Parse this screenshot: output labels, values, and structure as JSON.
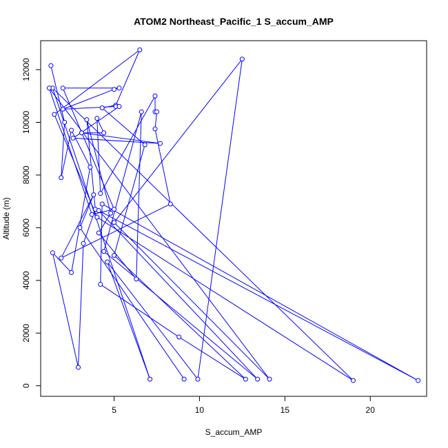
{
  "chart_data": {
    "type": "scatter",
    "title": "ATOM2 Northeast_Pacific_1 S_accum_AMP",
    "xlabel": "S_accum_AMP",
    "ylabel": "Altitude (m)",
    "xlim": [
      0.7,
      23.3
    ],
    "ylim": [
      -400,
      13100
    ],
    "xticks": [
      5,
      10,
      15,
      20
    ],
    "yticks": [
      0,
      2000,
      4000,
      6000,
      8000,
      10000,
      12000
    ],
    "grid": false,
    "series_color": "#0000ff",
    "series": [
      {
        "style": "line+points",
        "points": [
          [
            1.3,
            12150
          ],
          [
            2.1,
            10000
          ],
          [
            1.9,
            7900
          ],
          [
            2.5,
            9700
          ],
          [
            3.6,
            8300
          ],
          [
            2.5,
            4300
          ],
          [
            1.4,
            5050
          ],
          [
            2.9,
            700
          ],
          [
            3.2,
            5400
          ],
          [
            3.9,
            6700
          ],
          [
            3.4,
            10100
          ],
          [
            4.8,
            6550
          ],
          [
            4.1,
            5800
          ],
          [
            6.3,
            4050
          ],
          [
            6.6,
            10400
          ],
          [
            4.4,
            5100
          ],
          [
            13.4,
            250
          ],
          [
            4.1,
            6650
          ],
          [
            22.8,
            200
          ],
          [
            4.3,
            6900
          ],
          [
            4.2,
            3850
          ],
          [
            8.8,
            1850
          ],
          [
            12.7,
            250
          ],
          [
            5.0,
            4950
          ],
          [
            6.8,
            9150
          ],
          [
            4.3,
            10550
          ],
          [
            5.1,
            10650
          ],
          [
            6.5,
            12750
          ],
          [
            1.5,
            10300
          ],
          [
            4.0,
            6400
          ],
          [
            19.0,
            200
          ],
          [
            1.4,
            11300
          ],
          [
            7.1,
            250
          ],
          [
            4.6,
            4700
          ],
          [
            9.9,
            250
          ],
          [
            12.5,
            12400
          ],
          [
            5.0,
            6200
          ],
          [
            14.1,
            250
          ],
          [
            1.2,
            11300
          ],
          [
            3.7,
            6500
          ],
          [
            5.0,
            6700
          ],
          [
            2.0,
            11300
          ],
          [
            5.3,
            11300
          ],
          [
            5.0,
            11250
          ],
          [
            2.0,
            10500
          ],
          [
            5.1,
            10600
          ],
          [
            5.3,
            10600
          ],
          [
            2.6,
            9400
          ],
          [
            7.7,
            9200
          ],
          [
            3.1,
            9600
          ],
          [
            4.4,
            9600
          ],
          [
            4.0,
            10150
          ],
          [
            4.2,
            7300
          ],
          [
            7.4,
            11000
          ],
          [
            7.4,
            10400
          ],
          [
            7.5,
            10400
          ],
          [
            7.4,
            9750
          ],
          [
            8.3,
            6900
          ],
          [
            1.9,
            4850
          ],
          [
            3.8,
            7250
          ],
          [
            3.0,
            6000
          ],
          [
            9.1,
            250
          ]
        ]
      }
    ]
  }
}
